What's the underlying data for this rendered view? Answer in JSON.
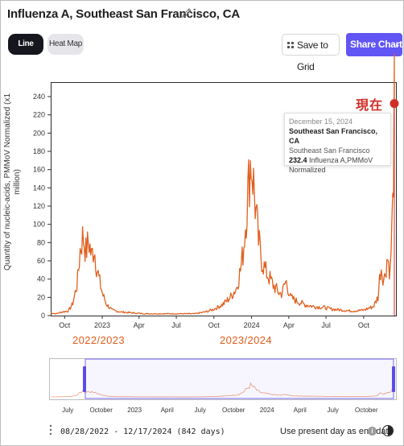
{
  "header": {
    "title": "Influenza A, Southeast San Francisco, CA",
    "edit_icon": "pencil-icon"
  },
  "toolbar": {
    "line_chart_label": "Line Chart",
    "heat_map_label": "Heat Map",
    "save_label": "Save to Grid",
    "save_icon": "grid-icon",
    "share_label": "Share Chart",
    "share_icon": "chevron-down-icon"
  },
  "colors": {
    "series": "#e0601f",
    "accent": "#6155f5",
    "marker": "#d12f25",
    "dark_button": "#16161f"
  },
  "chart_data": {
    "type": "line",
    "ylabel": "Quantity of nucleic-acids, PMMoV Normalized (x1 million)",
    "ylim": [
      0,
      250
    ],
    "y_ticks": [
      0,
      20,
      40,
      60,
      80,
      100,
      120,
      140,
      160,
      180,
      200,
      220,
      240
    ],
    "x_ticks": [
      "Oct",
      "2023",
      "Apr",
      "Jul",
      "Oct",
      "2024",
      "Apr",
      "Jul",
      "Oct"
    ],
    "xlim": [
      "2022-08-28",
      "2024-12-17"
    ],
    "grid": false,
    "series": [
      {
        "values": [
          [
            "2022-08-28",
            3
          ],
          [
            "2022-09-10",
            2
          ],
          [
            "2022-09-25",
            4
          ],
          [
            "2022-10-10",
            5
          ],
          [
            "2022-10-20",
            12
          ],
          [
            "2022-11-01",
            35
          ],
          [
            "2022-11-08",
            72
          ],
          [
            "2022-11-15",
            88
          ],
          [
            "2022-11-22",
            70
          ],
          [
            "2022-11-29",
            82
          ],
          [
            "2022-12-06",
            65
          ],
          [
            "2022-12-12",
            75
          ],
          [
            "2022-12-18",
            55
          ],
          [
            "2022-12-25",
            38
          ],
          [
            "2023-01-03",
            22
          ],
          [
            "2023-01-12",
            12
          ],
          [
            "2023-01-25",
            6
          ],
          [
            "2023-02-15",
            4
          ],
          [
            "2023-03-15",
            3
          ],
          [
            "2023-04-15",
            2
          ],
          [
            "2023-05-15",
            2
          ],
          [
            "2023-06-15",
            2
          ],
          [
            "2023-07-15",
            2
          ],
          [
            "2023-08-15",
            2
          ],
          [
            "2023-09-10",
            4
          ],
          [
            "2023-09-25",
            6
          ],
          [
            "2023-10-10",
            9
          ],
          [
            "2023-10-25",
            13
          ],
          [
            "2023-11-10",
            20
          ],
          [
            "2023-11-25",
            30
          ],
          [
            "2023-12-05",
            50
          ],
          [
            "2023-12-12",
            72
          ],
          [
            "2023-12-18",
            105
          ],
          [
            "2023-12-24",
            140
          ],
          [
            "2023-12-30",
            172
          ],
          [
            "2024-01-05",
            150
          ],
          [
            "2024-01-12",
            112
          ],
          [
            "2024-01-18",
            82
          ],
          [
            "2024-01-25",
            62
          ],
          [
            "2024-02-05",
            48
          ],
          [
            "2024-02-15",
            40
          ],
          [
            "2024-02-25",
            32
          ],
          [
            "2024-03-08",
            25
          ],
          [
            "2024-03-15",
            24
          ],
          [
            "2024-03-25",
            38
          ],
          [
            "2024-04-05",
            20
          ],
          [
            "2024-04-20",
            16
          ],
          [
            "2024-05-10",
            12
          ],
          [
            "2024-06-01",
            10
          ],
          [
            "2024-06-25",
            9
          ],
          [
            "2024-07-15",
            7
          ],
          [
            "2024-08-10",
            6
          ],
          [
            "2024-09-01",
            5
          ],
          [
            "2024-10-01",
            6
          ],
          [
            "2024-10-25",
            10
          ],
          [
            "2024-11-05",
            20
          ],
          [
            "2024-11-12",
            55
          ],
          [
            "2024-11-20",
            38
          ],
          [
            "2024-11-28",
            65
          ],
          [
            "2024-12-05",
            48
          ],
          [
            "2024-12-12",
            130
          ],
          [
            "2024-12-15",
            232.4
          ]
        ]
      }
    ],
    "annotations": {
      "present_marker": "現在",
      "season_labels": [
        "2022/2023",
        "2023/2024"
      ]
    }
  },
  "tooltip": {
    "date": "December 15, 2024",
    "location": "Southeast San Francisco, CA",
    "sublocation": "Southeast San Francisco",
    "value": "232.4",
    "value_suffix": "Influenza A,PMMoV Normalized"
  },
  "navigator": {
    "ticks": [
      "July",
      "October",
      "2023",
      "April",
      "July",
      "October",
      "2024",
      "April",
      "July",
      "October"
    ]
  },
  "footer": {
    "date_range": "08/28/2022 - 12/17/2024 (842 days)",
    "present_label": "Use present day as end date",
    "info_icon": "info-icon",
    "theme_icon": "contrast-toggle-icon"
  }
}
